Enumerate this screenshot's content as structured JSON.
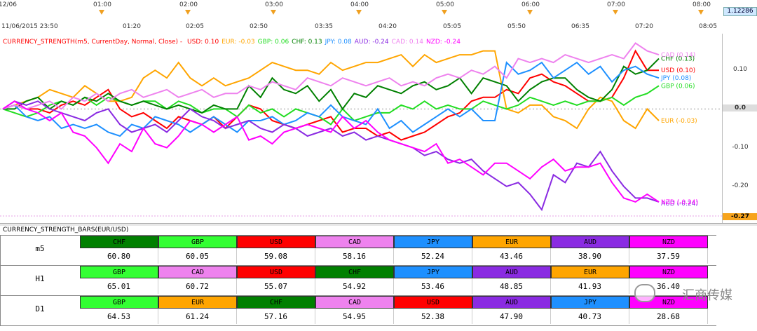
{
  "top_scale": {
    "labels": [
      "12/06",
      "01:00",
      "02:00",
      "03:00",
      "04:00",
      "05:00",
      "06:00",
      "07:00",
      "08:00"
    ],
    "price_box": "1.12286"
  },
  "date_scale": {
    "labels": [
      "11/06/2015 23:50",
      "01:20",
      "02:05",
      "02:50",
      "03:35",
      "04:20",
      "05:05",
      "05:50",
      "06:35",
      "07:20",
      "08:05"
    ]
  },
  "indicator": {
    "title": "CURRENCY_STRENGTH(m5, CurrentDay, Normal, Close) -",
    "readouts": [
      {
        "label": "USD: 0.10",
        "color": "#ff0000"
      },
      {
        "label": "EUR: -0.03",
        "color": "#ffa500"
      },
      {
        "label": "GBP: 0.06",
        "color": "#22dd22"
      },
      {
        "label": "CHF: 0.13",
        "color": "#008000"
      },
      {
        "label": "JPY: 0.08",
        "color": "#1e90ff"
      },
      {
        "label": "AUD: -0.24",
        "color": "#8a2be2"
      },
      {
        "label": "CAD: 0.14",
        "color": "#ee82ee"
      },
      {
        "label": "NZD: -0.24",
        "color": "#ff00ff"
      }
    ],
    "title_color": "#ff0000"
  },
  "right_axis": {
    "ticks": [
      "0.10",
      "0.0",
      "-0.10",
      "-0.20"
    ],
    "last_value": "-0.27"
  },
  "chart_data": {
    "type": "line",
    "ylim": [
      -0.28,
      0.18
    ],
    "series": [
      {
        "name": "USD",
        "color": "#ff0000",
        "end_label": "USD (0.10)",
        "values": [
          0,
          0.01,
          0.0,
          0.0,
          -0.01,
          0.01,
          0.02,
          0.01,
          0.03,
          0.05,
          0.0,
          -0.02,
          -0.01,
          -0.03,
          -0.05,
          -0.02,
          -0.03,
          -0.04,
          -0.02,
          -0.05,
          -0.02,
          0.01,
          0.0,
          -0.03,
          -0.04,
          -0.05,
          -0.04,
          -0.03,
          -0.02,
          -0.06,
          -0.05,
          -0.05,
          -0.07,
          -0.06,
          -0.08,
          -0.07,
          -0.06,
          -0.04,
          -0.02,
          -0.01,
          0.02,
          0.03,
          0.03,
          0.05,
          0.04,
          0.08,
          0.09,
          0.07,
          0.06,
          0.04,
          0.02,
          0.02,
          0.03,
          0.08,
          0.15,
          0.1,
          0.1
        ]
      },
      {
        "name": "EUR",
        "color": "#ffa500",
        "end_label": "EUR (-0.03)",
        "values": [
          0,
          0.01,
          0.02,
          0.03,
          0.05,
          0.04,
          0.03,
          0.06,
          0.04,
          0.02,
          0.02,
          0.03,
          0.08,
          0.1,
          0.08,
          0.12,
          0.08,
          0.06,
          0.08,
          0.06,
          0.07,
          0.08,
          0.1,
          0.12,
          0.11,
          0.1,
          0.1,
          0.09,
          0.12,
          0.1,
          0.11,
          0.12,
          0.12,
          0.13,
          0.14,
          0.11,
          0.14,
          0.12,
          0.13,
          0.14,
          0.14,
          0.15,
          0.15,
          0.0,
          -0.01,
          0.01,
          0.01,
          -0.02,
          -0.03,
          -0.05,
          0.0,
          0.03,
          0.02,
          -0.03,
          -0.05,
          0.0,
          -0.03
        ]
      },
      {
        "name": "GBP",
        "color": "#22dd22",
        "end_label": "GBP (0.06)",
        "values": [
          0,
          -0.01,
          -0.02,
          -0.01,
          0.01,
          0.02,
          0.01,
          0.03,
          0.01,
          0.03,
          0.02,
          0.01,
          0.02,
          0.02,
          0.0,
          0.02,
          0.01,
          -0.01,
          0.0,
          0.0,
          -0.02,
          0.01,
          -0.01,
          0.0,
          -0.02,
          0.0,
          -0.01,
          -0.02,
          -0.04,
          0.0,
          -0.03,
          -0.02,
          -0.01,
          -0.01,
          0.01,
          0.0,
          0.02,
          0.0,
          0.01,
          0.0,
          0.0,
          0.02,
          0.01,
          0.0,
          0.01,
          0.03,
          0.02,
          0.01,
          0.02,
          0.01,
          0.02,
          0.02,
          0.03,
          0.01,
          0.03,
          0.04,
          0.06
        ]
      },
      {
        "name": "CHF",
        "color": "#008000",
        "end_label": "CHF (0.13)",
        "values": [
          0,
          0.0,
          0.02,
          0.03,
          0.0,
          0.02,
          0.01,
          0.03,
          0.02,
          0.04,
          0.02,
          0.01,
          0.02,
          0.01,
          0.0,
          0.01,
          0.0,
          -0.01,
          0.01,
          0.0,
          0.0,
          0.06,
          0.03,
          0.08,
          0.05,
          0.04,
          0.06,
          0.02,
          0.05,
          0.0,
          0.04,
          0.03,
          0.06,
          0.05,
          0.04,
          0.06,
          0.07,
          0.05,
          0.06,
          0.08,
          0.04,
          0.08,
          0.07,
          0.06,
          0.02,
          0.05,
          0.07,
          0.08,
          0.08,
          0.05,
          0.03,
          0.02,
          0.05,
          0.11,
          0.09,
          0.1,
          0.13
        ]
      },
      {
        "name": "JPY",
        "color": "#1e90ff",
        "end_label": "JPY (0.08)",
        "values": [
          0,
          0.01,
          -0.02,
          -0.03,
          -0.02,
          -0.05,
          -0.04,
          -0.05,
          -0.04,
          -0.06,
          -0.07,
          -0.04,
          -0.05,
          -0.02,
          -0.03,
          -0.04,
          -0.06,
          -0.04,
          -0.02,
          -0.04,
          -0.06,
          -0.03,
          -0.03,
          -0.02,
          -0.04,
          -0.03,
          -0.01,
          -0.02,
          0.01,
          -0.02,
          -0.03,
          -0.04,
          0.0,
          -0.05,
          -0.03,
          -0.06,
          -0.04,
          -0.02,
          0.0,
          -0.02,
          0.0,
          -0.03,
          -0.03,
          0.12,
          0.09,
          0.1,
          0.12,
          0.08,
          0.1,
          0.12,
          0.09,
          0.11,
          0.07,
          0.1,
          0.11,
          0.09,
          0.08
        ]
      },
      {
        "name": "AUD",
        "color": "#8a2be2",
        "end_label": "AUD (-0.24)",
        "values": [
          0,
          0.02,
          0.01,
          0.02,
          0.0,
          -0.01,
          -0.02,
          -0.03,
          -0.01,
          0.0,
          -0.04,
          -0.06,
          -0.05,
          -0.04,
          -0.06,
          -0.03,
          0.0,
          -0.02,
          -0.03,
          -0.05,
          -0.04,
          -0.03,
          -0.05,
          -0.06,
          -0.04,
          -0.05,
          -0.07,
          -0.06,
          -0.05,
          -0.07,
          -0.06,
          -0.08,
          -0.07,
          -0.08,
          -0.09,
          -0.1,
          -0.12,
          -0.11,
          -0.13,
          -0.14,
          -0.13,
          -0.16,
          -0.18,
          -0.2,
          -0.19,
          -0.22,
          -0.26,
          -0.17,
          -0.19,
          -0.14,
          -0.15,
          -0.11,
          -0.16,
          -0.2,
          -0.23,
          -0.23,
          -0.24
        ]
      },
      {
        "name": "CAD",
        "color": "#ee82ee",
        "end_label": "CAD (0.14)",
        "values": [
          0,
          0.01,
          0.0,
          0.01,
          0.02,
          0.0,
          0.03,
          0.02,
          0.04,
          0.02,
          0.04,
          0.05,
          0.03,
          0.04,
          0.05,
          0.03,
          0.04,
          0.05,
          0.03,
          0.04,
          0.04,
          0.06,
          0.05,
          0.07,
          0.06,
          0.05,
          0.08,
          0.07,
          0.06,
          0.08,
          0.07,
          0.06,
          0.07,
          0.08,
          0.06,
          0.07,
          0.06,
          0.08,
          0.09,
          0.08,
          0.1,
          0.09,
          0.11,
          0.08,
          0.13,
          0.12,
          0.13,
          0.12,
          0.14,
          0.13,
          0.12,
          0.13,
          0.14,
          0.13,
          0.17,
          0.15,
          0.14
        ]
      },
      {
        "name": "NZD",
        "color": "#ff00ff",
        "end_label": "NZD (-0.24)",
        "values": [
          0,
          0.02,
          0.0,
          -0.01,
          -0.03,
          -0.01,
          -0.06,
          -0.07,
          -0.1,
          -0.14,
          -0.09,
          -0.11,
          -0.05,
          -0.09,
          -0.1,
          -0.07,
          -0.03,
          -0.04,
          -0.06,
          -0.04,
          -0.02,
          -0.08,
          -0.07,
          -0.09,
          -0.06,
          -0.05,
          -0.04,
          -0.05,
          -0.06,
          -0.02,
          -0.05,
          -0.03,
          -0.06,
          -0.08,
          -0.09,
          -0.1,
          -0.11,
          -0.09,
          -0.14,
          -0.13,
          -0.15,
          -0.17,
          -0.14,
          -0.14,
          -0.16,
          -0.18,
          -0.15,
          -0.13,
          -0.16,
          -0.15,
          -0.15,
          -0.14,
          -0.19,
          -0.23,
          -0.24,
          -0.22,
          -0.24
        ]
      }
    ]
  },
  "bars": {
    "title": "CURRENCY_STRENGTH_BARS(EUR/USD)",
    "rows": [
      {
        "label": "m5",
        "cells": [
          {
            "name": "CHF",
            "value": "60.80",
            "color": "#008000"
          },
          {
            "name": "GBP",
            "value": "60.05",
            "color": "#33ff33"
          },
          {
            "name": "USD",
            "value": "59.08",
            "color": "#ff0000"
          },
          {
            "name": "CAD",
            "value": "58.16",
            "color": "#ee82ee"
          },
          {
            "name": "JPY",
            "value": "52.24",
            "color": "#1e90ff"
          },
          {
            "name": "EUR",
            "value": "43.46",
            "color": "#ffa500"
          },
          {
            "name": "AUD",
            "value": "38.90",
            "color": "#8a2be2"
          },
          {
            "name": "NZD",
            "value": "37.59",
            "color": "#ff00ff"
          }
        ]
      },
      {
        "label": "H1",
        "cells": [
          {
            "name": "GBP",
            "value": "65.01",
            "color": "#33ff33"
          },
          {
            "name": "CAD",
            "value": "60.72",
            "color": "#ee82ee"
          },
          {
            "name": "USD",
            "value": "55.07",
            "color": "#ff0000"
          },
          {
            "name": "CHF",
            "value": "54.92",
            "color": "#008000"
          },
          {
            "name": "JPY",
            "value": "53.46",
            "color": "#1e90ff"
          },
          {
            "name": "AUD",
            "value": "48.85",
            "color": "#8a2be2"
          },
          {
            "name": "EUR",
            "value": "41.93",
            "color": "#ffa500"
          },
          {
            "name": "NZD",
            "value": "36.40",
            "color": "#ff00ff"
          }
        ]
      },
      {
        "label": "D1",
        "cells": [
          {
            "name": "GBP",
            "value": "64.53",
            "color": "#33ff33"
          },
          {
            "name": "EUR",
            "value": "61.24",
            "color": "#ffa500"
          },
          {
            "name": "CHF",
            "value": "57.16",
            "color": "#008000"
          },
          {
            "name": "CAD",
            "value": "54.95",
            "color": "#ee82ee"
          },
          {
            "name": "USD",
            "value": "52.38",
            "color": "#ff0000"
          },
          {
            "name": "AUD",
            "value": "47.90",
            "color": "#8a2be2"
          },
          {
            "name": "JPY",
            "value": "40.73",
            "color": "#1e90ff"
          },
          {
            "name": "NZD",
            "value": "28.68",
            "color": "#ff00ff"
          }
        ]
      }
    ]
  },
  "watermark": {
    "text": "汇商传媒",
    "icon": "wechat-icon"
  }
}
